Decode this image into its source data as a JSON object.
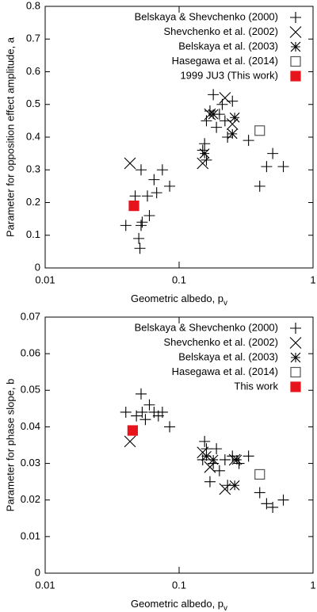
{
  "chart_data": [
    {
      "type": "scatter",
      "x_label": "Geometric albedo, p",
      "x_label_subscript": "v",
      "y_label": "Parameter for opposition effect amplitude, a",
      "xscale": "log",
      "xlim": [
        0.01,
        1
      ],
      "xticks": [
        0.01,
        0.1,
        1
      ],
      "ylim": [
        0,
        0.8
      ],
      "yticks": [
        0,
        0.1,
        0.2,
        0.3,
        0.4,
        0.5,
        0.6,
        0.7,
        0.8
      ],
      "legend": "upper right",
      "series": [
        {
          "name": "Belskaya & Shevchenko (2000)",
          "marker": "plus",
          "color": "#000000",
          "x": [
            0.04,
            0.047,
            0.05,
            0.051,
            0.052,
            0.053,
            0.052,
            0.058,
            0.06,
            0.065,
            0.068,
            0.075,
            0.085,
            0.15,
            0.155,
            0.16,
            0.17,
            0.18,
            0.19,
            0.2,
            0.21,
            0.22,
            0.25,
            0.33,
            0.4,
            0.45,
            0.5,
            0.6,
            0.16,
            0.23
          ],
          "values": [
            0.13,
            0.22,
            0.09,
            0.06,
            0.13,
            0.14,
            0.3,
            0.22,
            0.16,
            0.27,
            0.23,
            0.3,
            0.25,
            0.36,
            0.38,
            0.45,
            0.48,
            0.53,
            0.43,
            0.47,
            0.5,
            0.45,
            0.51,
            0.39,
            0.25,
            0.31,
            0.35,
            0.31,
            0.33,
            0.4
          ]
        },
        {
          "name": "Shevchenko et al. (2002)",
          "marker": "cross",
          "color": "#000000",
          "x": [
            0.043,
            0.15,
            0.17,
            0.22,
            0.25
          ],
          "values": [
            0.32,
            0.32,
            0.47,
            0.52,
            0.44
          ]
        },
        {
          "name": "Belskaya et al. (2003)",
          "marker": "star",
          "color": "#000000",
          "x": [
            0.155,
            0.18,
            0.25,
            0.26
          ],
          "values": [
            0.35,
            0.47,
            0.41,
            0.46
          ]
        },
        {
          "name": "Hasegawa et al. (2014)",
          "marker": "square-open",
          "color": "#555555",
          "x": [
            0.4
          ],
          "values": [
            0.42
          ]
        },
        {
          "name": "1999 JU3 (This work)",
          "marker": "square-filled",
          "color": "#e8141c",
          "x": [
            0.046
          ],
          "values": [
            0.19
          ]
        }
      ]
    },
    {
      "type": "scatter",
      "x_label": "Geometric albedo, p",
      "x_label_subscript": "v",
      "y_label": "Parameter for phase slope, b",
      "xscale": "log",
      "xlim": [
        0.01,
        1
      ],
      "xticks": [
        0.01,
        0.1,
        1
      ],
      "ylim": [
        0,
        0.07
      ],
      "yticks": [
        0,
        0.01,
        0.02,
        0.03,
        0.04,
        0.05,
        0.06,
        0.07
      ],
      "legend": "upper right",
      "series": [
        {
          "name": "Belskaya & Shevchenko (2000)",
          "marker": "plus",
          "color": "#000000",
          "x": [
            0.04,
            0.048,
            0.052,
            0.053,
            0.056,
            0.06,
            0.065,
            0.07,
            0.075,
            0.085,
            0.15,
            0.155,
            0.16,
            0.17,
            0.18,
            0.19,
            0.2,
            0.22,
            0.25,
            0.28,
            0.33,
            0.4,
            0.45,
            0.5,
            0.6,
            0.23
          ],
          "values": [
            0.044,
            0.043,
            0.049,
            0.044,
            0.042,
            0.046,
            0.044,
            0.043,
            0.044,
            0.04,
            0.031,
            0.036,
            0.034,
            0.025,
            0.03,
            0.034,
            0.028,
            0.031,
            0.032,
            0.03,
            0.032,
            0.022,
            0.019,
            0.018,
            0.02,
            0.024
          ]
        },
        {
          "name": "Shevchenko et al. (2002)",
          "marker": "cross",
          "color": "#000000",
          "x": [
            0.043,
            0.15,
            0.17,
            0.22,
            0.26
          ],
          "values": [
            0.036,
            0.033,
            0.029,
            0.023,
            0.031
          ]
        },
        {
          "name": "Belskaya et al. (2003)",
          "marker": "star",
          "color": "#000000",
          "x": [
            0.16,
            0.18,
            0.26,
            0.27
          ],
          "values": [
            0.032,
            0.031,
            0.024,
            0.031
          ]
        },
        {
          "name": "Hasegawa et al. (2014)",
          "marker": "square-open",
          "color": "#555555",
          "x": [
            0.4
          ],
          "values": [
            0.027
          ]
        },
        {
          "name": "This work",
          "marker": "square-filled",
          "color": "#e8141c",
          "x": [
            0.045
          ],
          "values": [
            0.039
          ]
        }
      ]
    }
  ]
}
